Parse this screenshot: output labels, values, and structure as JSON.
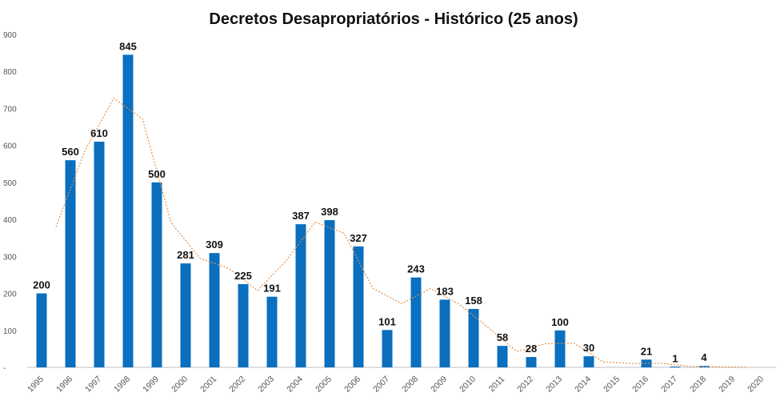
{
  "chart_data": {
    "type": "bar",
    "title": "Decretos Desapropriatórios - Histórico (25 anos)",
    "xlabel": "",
    "ylabel": "",
    "ylim": [
      0,
      900
    ],
    "yticks": [
      "-",
      "100",
      "200",
      "300",
      "400",
      "500",
      "600",
      "700",
      "800",
      "900"
    ],
    "categories": [
      "1995",
      "1996",
      "1997",
      "1998",
      "1999",
      "2000",
      "2001",
      "2002",
      "2003",
      "2004",
      "2005",
      "2006",
      "2007",
      "2008",
      "2009",
      "2010",
      "2011",
      "2012",
      "2013",
      "2014",
      "2015",
      "2016",
      "2017",
      "2018",
      "2019",
      "2020"
    ],
    "values": [
      200,
      560,
      610,
      845,
      500,
      281,
      309,
      225,
      191,
      387,
      398,
      327,
      101,
      243,
      183,
      158,
      58,
      28,
      100,
      30,
      0,
      21,
      1,
      4,
      0,
      0
    ],
    "data_labels": [
      "200",
      "560",
      "610",
      "845",
      "500",
      "281",
      "309",
      "225",
      "191",
      "387",
      "398",
      "327",
      "101",
      "243",
      "183",
      "158",
      "58",
      "28",
      "100",
      "30",
      "",
      "21",
      "1",
      "4",
      "",
      ""
    ],
    "trendline": {
      "type": "moving-average",
      "period": 2,
      "values": [
        380,
        585,
        727.5,
        672.5,
        390.5,
        295,
        267,
        208,
        289,
        392.5,
        362.5,
        214,
        172,
        213,
        170.5,
        108,
        43,
        64,
        65,
        15,
        10.5,
        11,
        2.5,
        2,
        0
      ]
    },
    "grid": false,
    "legend": "none",
    "colors": {
      "bar": "#0a6fbe",
      "trendline": "#e5914a",
      "axis": "#bfbfbf"
    }
  }
}
